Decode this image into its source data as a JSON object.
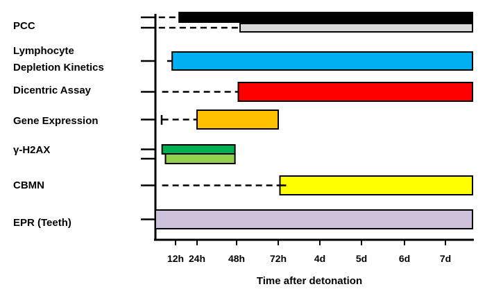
{
  "chart_data": {
    "type": "bar",
    "subtype": "gantt-timeline",
    "title": "",
    "xlabel": "Time after detonation",
    "ylabel": "",
    "x_ticks": [
      {
        "label": "12h",
        "hours": 12
      },
      {
        "label": "24h",
        "hours": 24
      },
      {
        "label": "48h",
        "hours": 48
      },
      {
        "label": "72h",
        "hours": 72
      },
      {
        "label": "4d",
        "hours": 96
      },
      {
        "label": "5d",
        "hours": 120
      },
      {
        "label": "6d",
        "hours": 144
      },
      {
        "label": "7d",
        "hours": 168
      }
    ],
    "xlim_hours": [
      0,
      183
    ],
    "grid": false,
    "legend": "none",
    "assays": [
      {
        "name": "PCC",
        "lines": [
          "PCC"
        ],
        "bars": [
          {
            "start_hours": 14,
            "end_hours": 183,
            "color": "#000000",
            "dash_start_hours": 2
          },
          {
            "start_hours": 50,
            "end_hours": 183,
            "color": "#d9d9d9",
            "dash_start_hours": 2
          }
        ]
      },
      {
        "name": "Lymphocyte Depletion Kinetics",
        "lines": [
          "Lymphocyte",
          "Depletion Kinetics"
        ],
        "bars": [
          {
            "start_hours": 10,
            "end_hours": 183,
            "color": "#00b0f0",
            "dash_start_hours": 7
          }
        ]
      },
      {
        "name": "Dicentric Assay",
        "lines": [
          "Dicentric Assay"
        ],
        "bars": [
          {
            "start_hours": 49,
            "end_hours": 183,
            "color": "#ff0000",
            "dash_start_hours": 4
          }
        ]
      },
      {
        "name": "Gene Expression",
        "lines": [
          "Gene Expression"
        ],
        "bars": [
          {
            "start_hours": 24,
            "end_hours": 72,
            "color": "#ffc000",
            "dash_start_hours": 4
          }
        ]
      },
      {
        "name": "γ-H2AX",
        "lines": [
          "γ-H2AX"
        ],
        "bars": [
          {
            "start_hours": 4,
            "end_hours": 47,
            "color": "#00b050"
          },
          {
            "start_hours": 6,
            "end_hours": 47,
            "color": "#92d050"
          }
        ]
      },
      {
        "name": "CBMN",
        "lines": [
          "CBMN"
        ],
        "bars": [
          {
            "start_hours": 73,
            "end_hours": 183,
            "color": "#ffff00",
            "dash_start_hours": 4,
            "dash_end_hours": 79
          }
        ]
      },
      {
        "name": "EPR (Teeth)",
        "lines": [
          "EPR (Teeth)"
        ],
        "bars": [
          {
            "start_hours": 0,
            "end_hours": 183,
            "color": "#ccc0da"
          }
        ]
      }
    ]
  }
}
